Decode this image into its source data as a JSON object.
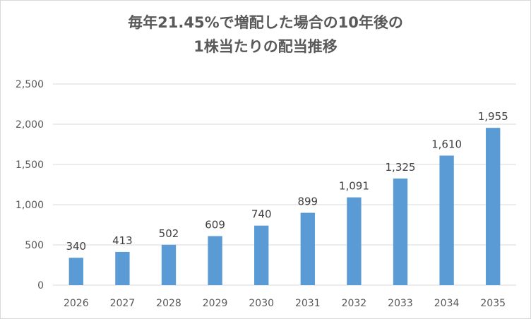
{
  "chart_data": {
    "type": "bar",
    "title_line1": "毎年21.45%で増配した場合の10年後の",
    "title_line2": "1株当たりの配当推移",
    "categories": [
      "2026",
      "2027",
      "2028",
      "2029",
      "2030",
      "2031",
      "2032",
      "2033",
      "2034",
      "2035"
    ],
    "values": [
      340,
      413,
      502,
      609,
      740,
      899,
      1091,
      1325,
      1610,
      1955
    ],
    "value_labels": [
      "340",
      "413",
      "502",
      "609",
      "740",
      "899",
      "1,091",
      "1,325",
      "1,610",
      "1,955"
    ],
    "y_ticks": [
      0,
      500,
      1000,
      1500,
      2000,
      2500
    ],
    "y_tick_labels": [
      "0",
      "500",
      "1,000",
      "1,500",
      "2,000",
      "2,500"
    ],
    "ylim": [
      0,
      2500
    ],
    "grid": true,
    "legend": "none",
    "colors": {
      "bar": "#5b9bd5",
      "grid": "#d9d9d9",
      "text": "#595959"
    }
  }
}
